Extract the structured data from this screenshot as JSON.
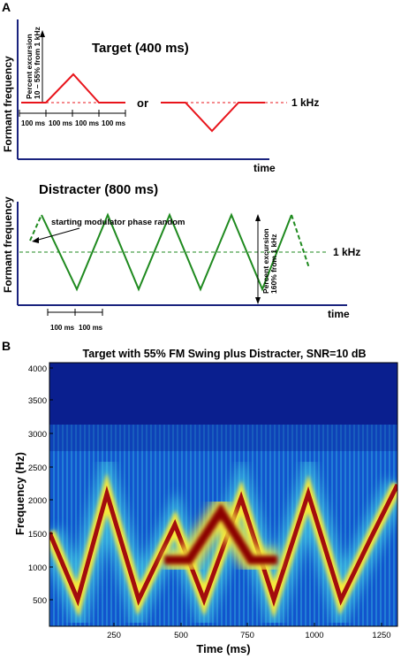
{
  "panel_a": {
    "letter": "A",
    "target_title": "Target (400 ms)",
    "ylabel": "Formant frequency",
    "excursion_line1": "Percent excursion",
    "excursion_line2": "10 – 55% from 1 kHz",
    "or_label": "or",
    "ref_label": "1 kHz",
    "time_label": "time",
    "segments": [
      "100 ms",
      "100 ms",
      "100 ms",
      "100 ms"
    ],
    "line_color": "#e8141b"
  },
  "panel_a2": {
    "distracter_title": "Distracter (800 ms)",
    "ylabel": "Formant frequency",
    "phase_note": "starting modulator phase random",
    "excursion_line1": "Percent excursion",
    "excursion_line2": "160% from 1 kHz",
    "ref_label": "1 kHz",
    "time_label": "time",
    "segments": [
      "100 ms",
      "100 ms"
    ],
    "line_color": "#1f8a1f"
  },
  "panel_b": {
    "letter": "B",
    "title": "Target with 55% FM Swing plus Distracter, SNR=10 dB",
    "ylabel": "Frequency (Hz)",
    "xlabel": "Time (ms)",
    "yticks": [
      "4000",
      "3500",
      "3000",
      "2500",
      "2000",
      "1500",
      "1000",
      "500"
    ],
    "xticks": [
      "250",
      "500",
      "750",
      "1000",
      "1250"
    ],
    "background_color": "#0a1f8f"
  }
}
